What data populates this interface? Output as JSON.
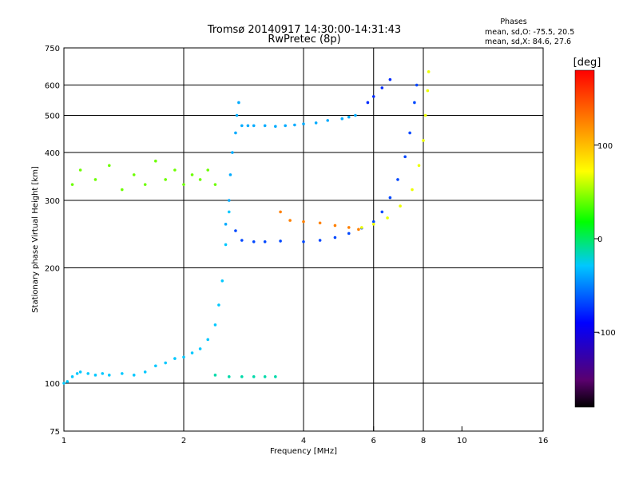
{
  "chart_data": {
    "type": "scatter",
    "title": "Tromsø 20140917 14:30:00-14:31:43",
    "subtitle": "RwPretec (8p)",
    "xlabel": "Frequency [MHz]",
    "ylabel": "Stationary phase Virtual Height [km]",
    "x_scale": "log",
    "y_scale": "log",
    "xlim": [
      1,
      16
    ],
    "ylim": [
      75,
      750
    ],
    "x_ticks": [
      1,
      2,
      4,
      6,
      8,
      10,
      16
    ],
    "y_ticks": [
      75,
      100,
      200,
      300,
      400,
      500,
      600,
      750
    ],
    "x_gridlines": [
      2,
      4,
      6,
      8
    ],
    "y_gridlines": [
      100,
      200,
      300,
      400,
      500,
      600
    ],
    "legend": {
      "title": "Phases",
      "lines": [
        "mean, sd,O: -75.5, 20.5",
        "mean, sd,X:  84.6, 27.6"
      ]
    },
    "colorbar": {
      "label": "[deg]",
      "range": [
        -180,
        180
      ],
      "ticks": [
        100,
        0,
        -100
      ],
      "colormap": "rainbow (black/purple at -180 → blue → cyan → green → yellow → orange → red at +180)"
    },
    "series": [
      {
        "id": "low-trace",
        "color_value": -30,
        "points": [
          [
            1.0,
            100
          ],
          [
            1.02,
            101
          ],
          [
            1.05,
            104
          ],
          [
            1.08,
            106
          ],
          [
            1.1,
            107
          ],
          [
            1.15,
            106
          ],
          [
            1.2,
            105
          ],
          [
            1.25,
            106
          ],
          [
            1.3,
            105
          ],
          [
            1.4,
            106
          ],
          [
            1.5,
            105
          ],
          [
            1.6,
            107
          ],
          [
            1.7,
            111
          ],
          [
            1.8,
            113
          ],
          [
            1.9,
            116
          ],
          [
            2.0,
            117
          ],
          [
            2.1,
            120
          ],
          [
            2.2,
            123
          ],
          [
            2.3,
            130
          ],
          [
            2.4,
            142
          ],
          [
            2.45,
            160
          ],
          [
            2.5,
            185
          ],
          [
            2.55,
            230
          ],
          [
            2.6,
            280
          ]
        ]
      },
      {
        "id": "e-cusp",
        "color_value": -40,
        "points": [
          [
            2.55,
            260
          ],
          [
            2.6,
            300
          ],
          [
            2.62,
            350
          ],
          [
            2.65,
            400
          ],
          [
            2.7,
            450
          ],
          [
            2.72,
            500
          ],
          [
            2.75,
            540
          ],
          [
            2.8,
            470
          ],
          [
            2.9,
            470
          ],
          [
            3.0,
            470
          ],
          [
            3.2,
            470
          ],
          [
            3.4,
            468
          ],
          [
            3.6,
            470
          ],
          [
            3.8,
            472
          ],
          [
            4.0,
            475
          ],
          [
            4.3,
            478
          ],
          [
            4.6,
            485
          ],
          [
            5.0,
            490
          ],
          [
            5.2,
            495
          ],
          [
            5.4,
            500
          ]
        ]
      },
      {
        "id": "o-trace",
        "color_value": -75,
        "points": [
          [
            2.7,
            250
          ],
          [
            2.8,
            236
          ],
          [
            3.0,
            234
          ],
          [
            3.2,
            234
          ],
          [
            3.5,
            235
          ],
          [
            4.0,
            234
          ],
          [
            4.4,
            236
          ],
          [
            4.8,
            240
          ],
          [
            5.2,
            246
          ],
          [
            5.6,
            254
          ],
          [
            6.0,
            264
          ],
          [
            6.3,
            280
          ],
          [
            6.6,
            305
          ],
          [
            6.9,
            340
          ],
          [
            7.2,
            390
          ],
          [
            7.4,
            450
          ],
          [
            7.6,
            540
          ],
          [
            7.7,
            600
          ]
        ]
      },
      {
        "id": "x-trace",
        "color_value": 65,
        "points": [
          [
            5.6,
            255
          ],
          [
            6.0,
            260
          ],
          [
            6.5,
            270
          ],
          [
            7.0,
            290
          ],
          [
            7.5,
            320
          ],
          [
            7.8,
            370
          ],
          [
            8.0,
            430
          ],
          [
            8.1,
            500
          ],
          [
            8.2,
            580
          ],
          [
            8.25,
            650
          ]
        ]
      },
      {
        "id": "x-orange",
        "color_value": 130,
        "points": [
          [
            3.5,
            280
          ],
          [
            3.7,
            266
          ],
          [
            4.0,
            264
          ],
          [
            4.4,
            262
          ],
          [
            4.8,
            258
          ],
          [
            5.2,
            255
          ],
          [
            5.5,
            252
          ]
        ]
      },
      {
        "id": "high-o",
        "color_value": -85,
        "points": [
          [
            5.8,
            540
          ],
          [
            6.0,
            560
          ],
          [
            6.3,
            590
          ],
          [
            6.6,
            620
          ]
        ]
      },
      {
        "id": "low-cluster",
        "color_value": -20,
        "points": [
          [
            2.4,
            105
          ],
          [
            2.6,
            104
          ],
          [
            2.8,
            104
          ],
          [
            3.0,
            104
          ],
          [
            3.2,
            104
          ],
          [
            3.4,
            104
          ]
        ]
      },
      {
        "id": "spread-f",
        "color_value": 30,
        "points": [
          [
            1.05,
            330
          ],
          [
            1.1,
            360
          ],
          [
            1.2,
            340
          ],
          [
            1.3,
            370
          ],
          [
            1.4,
            320
          ],
          [
            1.5,
            350
          ],
          [
            1.6,
            330
          ],
          [
            1.7,
            380
          ],
          [
            1.8,
            340
          ],
          [
            1.9,
            360
          ],
          [
            2.0,
            330
          ],
          [
            2.1,
            350
          ],
          [
            2.2,
            340
          ],
          [
            2.3,
            360
          ],
          [
            2.4,
            330
          ]
        ]
      }
    ]
  }
}
